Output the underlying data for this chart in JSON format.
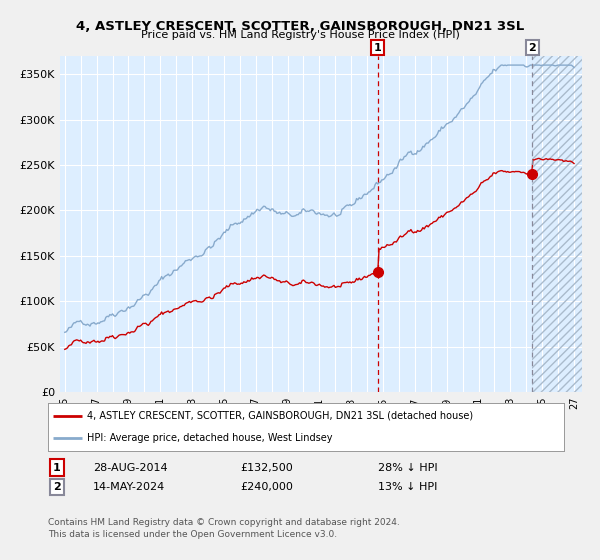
{
  "title": "4, ASTLEY CRESCENT, SCOTTER, GAINSBOROUGH, DN21 3SL",
  "subtitle": "Price paid vs. HM Land Registry's House Price Index (HPI)",
  "legend_red": "4, ASTLEY CRESCENT, SCOTTER, GAINSBOROUGH, DN21 3SL (detached house)",
  "legend_blue": "HPI: Average price, detached house, West Lindsey",
  "annotation1_date": "28-AUG-2014",
  "annotation1_price": "£132,500",
  "annotation1_hpi": "28% ↓ HPI",
  "annotation2_date": "14-MAY-2024",
  "annotation2_price": "£240,000",
  "annotation2_hpi": "13% ↓ HPI",
  "footer": "Contains HM Land Registry data © Crown copyright and database right 2024.\nThis data is licensed under the Open Government Licence v3.0.",
  "red_color": "#cc0000",
  "blue_color": "#88aacc",
  "bg_color": "#ddeeff",
  "hatch_color": "#aabbcc",
  "grid_color": "#ffffff",
  "fig_bg": "#f0f0f0",
  "ylim": [
    0,
    370000
  ],
  "xlim_start": 1995.0,
  "xlim_end": 2027.5,
  "sale1_x": 2014.66,
  "sale1_y": 132500,
  "sale2_x": 2024.37,
  "sale2_y": 240000,
  "hatch_start": 2024.37
}
